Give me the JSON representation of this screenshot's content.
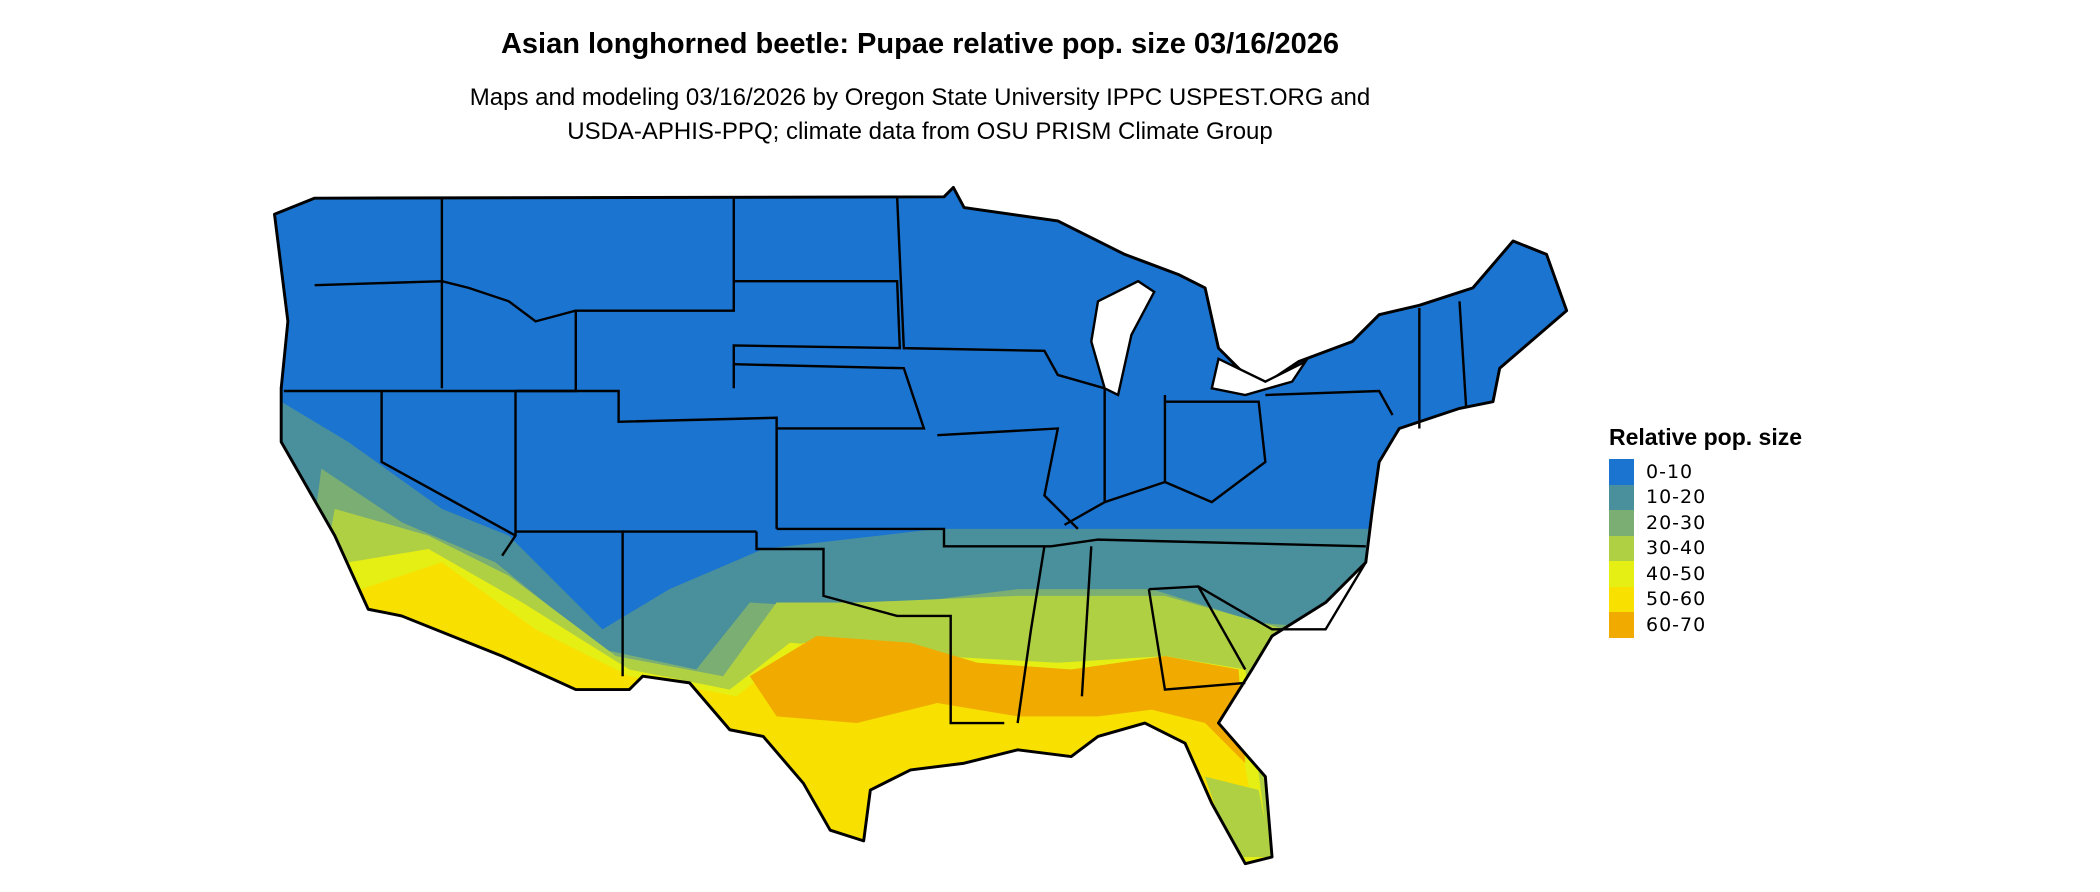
{
  "title": "Asian longhorned beetle: Pupae relative pop. size 03/16/2026",
  "subtitle_line1": "Maps and modeling 03/16/2026 by Oregon State University IPPC USPEST.ORG and",
  "subtitle_line2": "USDA-APHIS-PPQ; climate data from OSU PRISM Climate Group",
  "legend": {
    "title": "Relative pop. size",
    "items": [
      {
        "label": "0-10",
        "color": "#1b75d0"
      },
      {
        "label": "10-20",
        "color": "#4a909c"
      },
      {
        "label": "20-30",
        "color": "#7aae72"
      },
      {
        "label": "30-40",
        "color": "#b0d044"
      },
      {
        "label": "40-50",
        "color": "#e6ef14"
      },
      {
        "label": "50-60",
        "color": "#f8e000"
      },
      {
        "label": "60-70",
        "color": "#f0aa00"
      }
    ]
  }
}
